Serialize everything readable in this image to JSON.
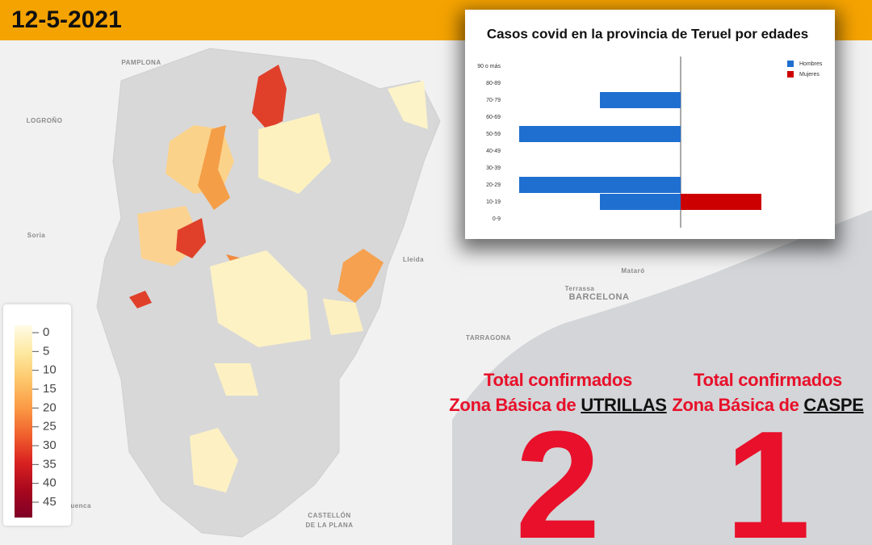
{
  "header": {
    "date": "12-5-2021"
  },
  "chart_data": {
    "type": "bar",
    "orientation": "horizontal",
    "title": "Casos covid en la provincia de Teruel por edades",
    "categories": [
      "0-9",
      "10-19",
      "20-29",
      "30-39",
      "40-49",
      "50-59",
      "60-69",
      "70-79",
      "80-89",
      "90 o más"
    ],
    "series": [
      {
        "name": "Hombres",
        "color": "#1f6fd0",
        "values": [
          0,
          1,
          2,
          0,
          0,
          2,
          0,
          1,
          0,
          0
        ]
      },
      {
        "name": "Mujeres",
        "color": "#cc0000",
        "values": [
          0,
          1,
          0,
          0,
          0,
          0,
          0,
          0,
          0,
          0
        ]
      }
    ],
    "xlim": [
      0,
      2
    ],
    "legend": "top-right"
  },
  "map": {
    "labels": [
      "PAMPLONA",
      "LOGROÑO",
      "Soria",
      "Lleida",
      "Terrassa",
      "Mataró",
      "BARCELONA",
      "TARRAGONA",
      "Cuenca",
      "CASTELLÓN",
      "DE LA PLANA"
    ]
  },
  "colorbar": {
    "ticks": [
      0,
      5,
      10,
      15,
      20,
      25,
      30,
      35,
      40,
      45
    ],
    "colors": [
      "#fffbe6",
      "#fde9a0",
      "#fdc66a",
      "#fb9a45",
      "#f0602d",
      "#d92121",
      "#a8081e",
      "#800026"
    ]
  },
  "stats": [
    {
      "title": "Total confirmados",
      "zone_prefix": "Zona Básica de",
      "zone": "UTRILLAS",
      "value": 2
    },
    {
      "title": "Total confirmados",
      "zone_prefix": "Zona Básica de",
      "zone": "CASPE",
      "value": 1
    }
  ]
}
